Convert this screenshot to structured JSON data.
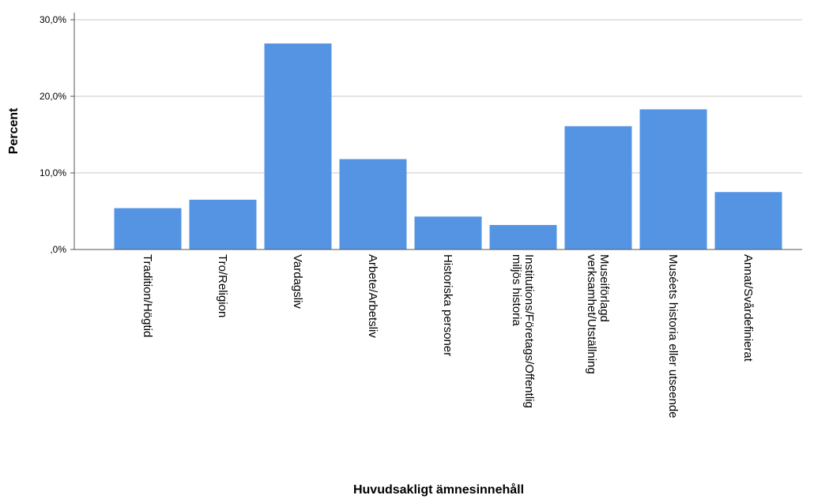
{
  "chart_data": {
    "type": "bar",
    "xlabel": "Huvudsakligt ämnesinnehåll",
    "ylabel": "Percent",
    "ylim": [
      0,
      30
    ],
    "yticks": [
      0,
      10,
      20,
      30
    ],
    "ytick_labels": [
      ",0%",
      "10,0%",
      "20,0%",
      "30,0%"
    ],
    "grid": true,
    "bar_color": "#5594e3",
    "grid_color": "#c8c8c8",
    "categories": [
      [
        "Tradition/Högtid"
      ],
      [
        "Tro/Religion"
      ],
      [
        "Vardagsliv"
      ],
      [
        "Arbete/Arbetsliv"
      ],
      [
        "Historiska personer"
      ],
      [
        "Institutions/Företags/Offentlig",
        "miljös historia"
      ],
      [
        "Museiförlagd",
        "verksamhet/Utställning"
      ],
      [
        "Muséets historia eller utseende"
      ],
      [
        "Annat/Svårdefinierat"
      ]
    ],
    "values": [
      5.4,
      6.5,
      26.9,
      11.8,
      4.3,
      3.2,
      16.1,
      18.3,
      7.5
    ]
  }
}
